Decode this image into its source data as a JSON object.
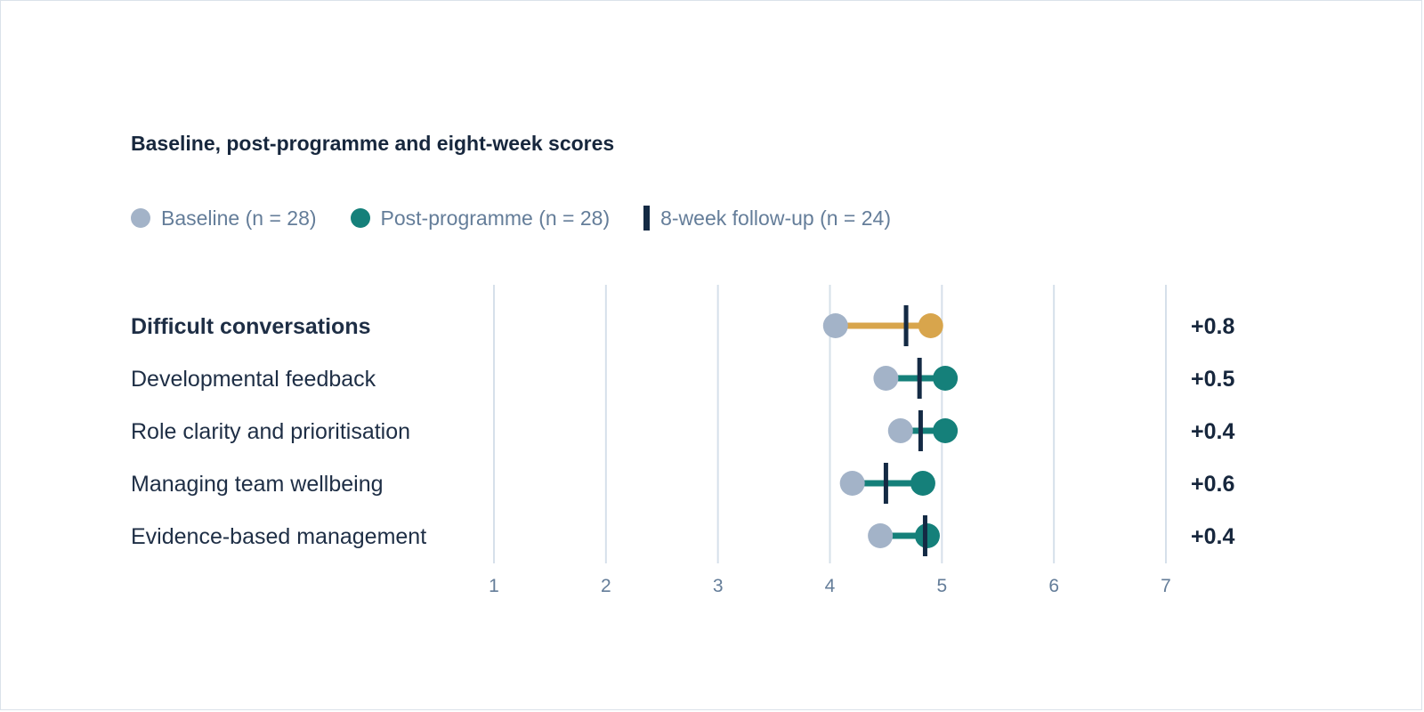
{
  "chart_data": {
    "type": "dot-range",
    "title": "Baseline, post-programme and eight-week scores",
    "legend": [
      {
        "label": "Baseline (n = 28)",
        "color": "#a3b3c8",
        "shape": "dot"
      },
      {
        "label": "Post-programme (n = 28)",
        "color": "#15807a",
        "shape": "dot"
      },
      {
        "label": "8-week follow-up (n = 24)",
        "color": "#142a44",
        "shape": "tick"
      }
    ],
    "x_ticks": [
      "1",
      "2",
      "3",
      "4",
      "5",
      "6",
      "7"
    ],
    "xlim": [
      1,
      7
    ],
    "grid": true,
    "highlight_color": "#d8a54c",
    "rows": [
      {
        "label": "Difficult conversations",
        "baseline": 4.05,
        "post": 4.9,
        "followup": 4.68,
        "delta": "+0.8",
        "highlight": true
      },
      {
        "label": "Developmental feedback",
        "baseline": 4.5,
        "post": 5.03,
        "followup": 4.8,
        "delta": "+0.5",
        "highlight": false
      },
      {
        "label": "Role clarity and prioritisation",
        "baseline": 4.63,
        "post": 5.03,
        "followup": 4.81,
        "delta": "+0.4",
        "highlight": false
      },
      {
        "label": "Managing team wellbeing",
        "baseline": 4.2,
        "post": 4.83,
        "followup": 4.5,
        "delta": "+0.6",
        "highlight": false
      },
      {
        "label": "Evidence-based management",
        "baseline": 4.45,
        "post": 4.87,
        "followup": 4.85,
        "delta": "+0.4",
        "highlight": false
      }
    ]
  }
}
